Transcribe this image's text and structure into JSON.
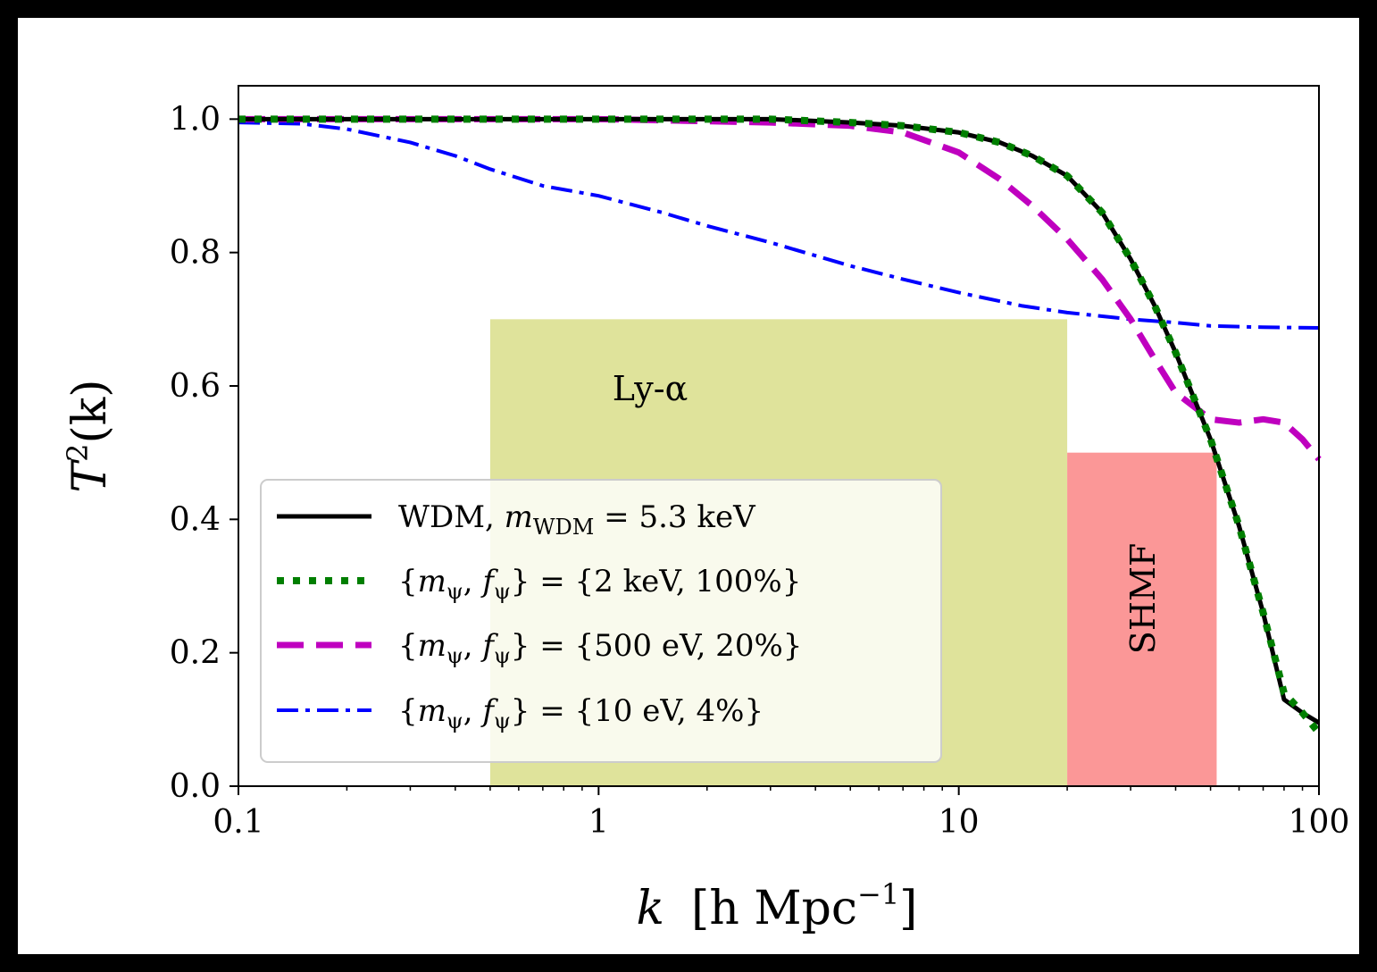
{
  "chart_data": {
    "type": "line",
    "xscale": "log",
    "xlim": [
      0.1,
      100
    ],
    "ylim": [
      0.0,
      1.05
    ],
    "xlabel": "k  [h Mpc⁻¹]",
    "ylabel": "T²(k)",
    "x_ticks": [
      0.1,
      1,
      10,
      100
    ],
    "x_tick_labels": [
      "0.1",
      "1",
      "10",
      "100"
    ],
    "y_ticks": [
      0.0,
      0.2,
      0.4,
      0.6,
      0.8,
      1.0
    ],
    "y_tick_labels": [
      "0.0",
      "0.2",
      "0.4",
      "0.6",
      "0.8",
      "1.0"
    ],
    "grid": false,
    "legend_position": "lower-left",
    "regions": [
      {
        "label": "Ly-α",
        "x_range": [
          0.5,
          20
        ],
        "y_range": [
          0,
          0.7
        ],
        "color": "#dfe39b"
      },
      {
        "label": "SHMF",
        "x_range": [
          20,
          52
        ],
        "y_range": [
          0,
          0.5
        ],
        "color": "#fb9797"
      }
    ],
    "series": [
      {
        "name": "WDM,  m_WDM = 5.3 keV",
        "color": "#000000",
        "style": "solid",
        "x": [
          0.1,
          1,
          3,
          5,
          7,
          10,
          13,
          16,
          20,
          25,
          30,
          35,
          40,
          50,
          60,
          70,
          80,
          90,
          100
        ],
        "y": [
          1.0,
          1.0,
          1.0,
          0.995,
          0.99,
          0.98,
          0.965,
          0.945,
          0.915,
          0.86,
          0.79,
          0.72,
          0.65,
          0.52,
          0.39,
          0.26,
          0.13,
          0.11,
          0.095
        ]
      },
      {
        "name": "{m_ψ, f_ψ} = {2 keV, 100%}",
        "color": "#007f00",
        "style": "dotted",
        "x": [
          0.1,
          1,
          3,
          5,
          7,
          10,
          13,
          16,
          20,
          25,
          30,
          35,
          40,
          50,
          60,
          70,
          80,
          90,
          100
        ],
        "y": [
          1.0,
          1.0,
          1.0,
          0.995,
          0.99,
          0.98,
          0.965,
          0.945,
          0.915,
          0.86,
          0.79,
          0.72,
          0.65,
          0.52,
          0.39,
          0.26,
          0.14,
          0.11,
          0.08
        ]
      },
      {
        "name": "{m_ψ, f_ψ} = {500 eV, 20%}",
        "color": "#bf00bf",
        "style": "dashed",
        "x": [
          0.1,
          1,
          3,
          5,
          7,
          10,
          13,
          16,
          20,
          25,
          30,
          35,
          40,
          50,
          60,
          70,
          80,
          90,
          100
        ],
        "y": [
          1.0,
          1.0,
          0.995,
          0.99,
          0.98,
          0.95,
          0.91,
          0.87,
          0.82,
          0.76,
          0.7,
          0.64,
          0.59,
          0.55,
          0.545,
          0.55,
          0.545,
          0.52,
          0.49
        ]
      },
      {
        "name": "{m_ψ, f_ψ} = {10 eV, 4%}",
        "color": "#0000ff",
        "style": "dashdot",
        "x": [
          0.1,
          0.15,
          0.2,
          0.3,
          0.4,
          0.5,
          0.7,
          1,
          1.5,
          2,
          3,
          5,
          7,
          10,
          15,
          20,
          30,
          40,
          50,
          70,
          100
        ],
        "y": [
          0.995,
          0.993,
          0.985,
          0.965,
          0.945,
          0.925,
          0.9,
          0.885,
          0.86,
          0.84,
          0.815,
          0.78,
          0.76,
          0.74,
          0.72,
          0.71,
          0.7,
          0.695,
          0.69,
          0.688,
          0.687
        ]
      }
    ]
  },
  "legend": {
    "entries": [
      {
        "prefix": "WDM,  ",
        "math": "m",
        "sub": "WDM",
        "suffix": " = 5.3 keV"
      },
      {
        "prefix": "{",
        "math": "m",
        "sub": "ψ",
        "suffix": ", f",
        "sub2": "ψ",
        "tail": "} = {2 keV, 100%}"
      },
      {
        "prefix": "{",
        "math": "m",
        "sub": "ψ",
        "suffix": ", f",
        "sub2": "ψ",
        "tail": "} = {500 eV, 20%}"
      },
      {
        "prefix": "{",
        "math": "m",
        "sub": "ψ",
        "suffix": ", f",
        "sub2": "ψ",
        "tail": "} = {10 eV, 4%}"
      }
    ]
  },
  "axes_text": {
    "xlabel_k": "k",
    "xlabel_units_open": "[h Mpc",
    "xlabel_exp": "−1",
    "xlabel_units_close": "]",
    "ylabel_T": "T",
    "ylabel_exp": "2",
    "ylabel_rest": "(k)"
  }
}
